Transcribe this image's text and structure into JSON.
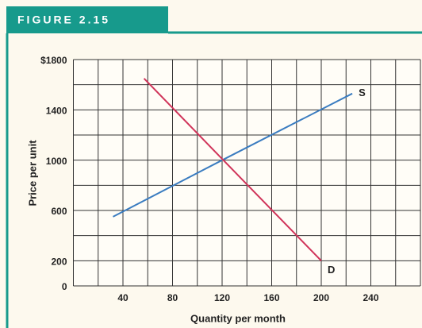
{
  "header": "FIGURE 2.15",
  "chart_data": {
    "type": "line",
    "xlabel": "Quantity per month",
    "ylabel": "Price per unit",
    "xlim": [
      0,
      280
    ],
    "ylim": [
      0,
      1800
    ],
    "xticks": [
      40,
      80,
      120,
      160,
      200,
      240
    ],
    "yticks": [
      0,
      200,
      600,
      1000,
      1400,
      {
        "value": 1800,
        "label": "$1800"
      }
    ],
    "xgrid": [
      0,
      20,
      40,
      60,
      80,
      100,
      120,
      140,
      160,
      180,
      200,
      220,
      240,
      260,
      280
    ],
    "ygrid": [
      0,
      200,
      400,
      600,
      800,
      1000,
      1200,
      1400,
      1600,
      1800
    ],
    "series": [
      {
        "name": "S",
        "color": "#3a7cc0",
        "x": [
          32,
          120,
          225
        ],
        "values": [
          550,
          1000,
          1530
        ]
      },
      {
        "name": "D",
        "color": "#d0345a",
        "x": [
          57,
          120,
          200
        ],
        "values": [
          1650,
          1010,
          200
        ]
      }
    ]
  }
}
